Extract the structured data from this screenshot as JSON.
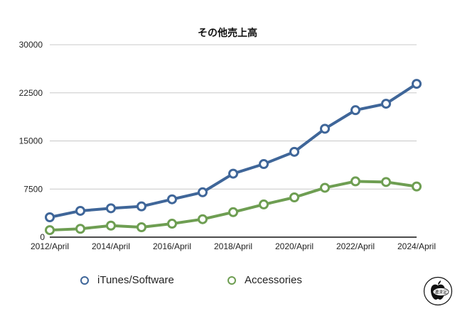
{
  "chart_data": {
    "type": "line",
    "title": "その他売上高",
    "xlabel": "",
    "ylabel": "",
    "ylim": [
      0,
      30000
    ],
    "yticks": [
      0,
      7500,
      15000,
      22500,
      30000
    ],
    "ytick_labels": [
      "0",
      "7500",
      "15000",
      "22500",
      "30000"
    ],
    "x": [
      "2012/April",
      "2013/April",
      "2014/April",
      "2015/April",
      "2016/April",
      "2017/April",
      "2018/April",
      "2019/April",
      "2020/April",
      "2021/April",
      "2022/April",
      "2023/April",
      "2024/April"
    ],
    "xtick_labels": [
      "2012/April",
      "2014/April",
      "2016/April",
      "2018/April",
      "2020/April",
      "2022/April",
      "2024/April"
    ],
    "grid": "horizontal",
    "legend_position": "bottom",
    "series": [
      {
        "name": "iTunes/Software",
        "color": "#3F6699",
        "values": [
          3100,
          4100,
          4500,
          4800,
          5900,
          7000,
          9900,
          11400,
          13300,
          16900,
          19800,
          20800,
          23900
        ]
      },
      {
        "name": "Accessories",
        "color": "#6E9E52",
        "values": [
          1100,
          1300,
          1800,
          1550,
          2100,
          2800,
          3900,
          5100,
          6200,
          7700,
          8700,
          8600,
          7900
        ]
      }
    ]
  },
  "legend": {
    "items": [
      {
        "label": "iTunes/Software",
        "color": "#3F6699"
      },
      {
        "label": "Accessories",
        "color": "#6E9E52"
      }
    ]
  },
  "badge": {
    "icon": "apple-logo-stamp-icon",
    "text": "濃済定"
  }
}
